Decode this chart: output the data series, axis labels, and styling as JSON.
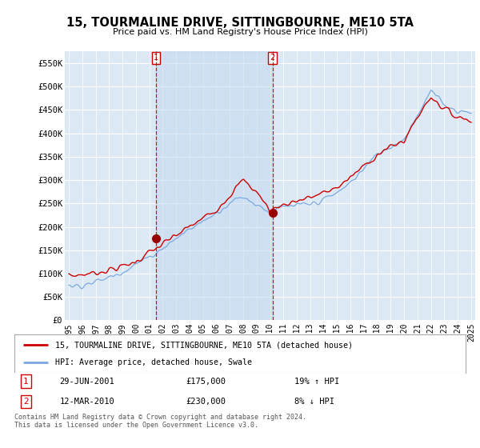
{
  "title": "15, TOURMALINE DRIVE, SITTINGBOURNE, ME10 5TA",
  "subtitle": "Price paid vs. HM Land Registry's House Price Index (HPI)",
  "ylim": [
    0,
    575000
  ],
  "yticks": [
    0,
    50000,
    100000,
    150000,
    200000,
    250000,
    300000,
    350000,
    400000,
    450000,
    500000,
    550000
  ],
  "ytick_labels": [
    "£0",
    "£50K",
    "£100K",
    "£150K",
    "£200K",
    "£250K",
    "£300K",
    "£350K",
    "£400K",
    "£450K",
    "£500K",
    "£550K"
  ],
  "background_color": "#ffffff",
  "plot_bg_color": "#dce9f5",
  "grid_color": "#c8d8e8",
  "shade_color": "#c5d8f0",
  "sale1_x": 6.5,
  "sale1_price": 175000,
  "sale1_date_str": "29-JUN-2001",
  "sale1_amount_str": "£175,000",
  "sale1_hpi_str": "19% ↑ HPI",
  "sale2_x": 15.2,
  "sale2_price": 230000,
  "sale2_date_str": "12-MAR-2010",
  "sale2_amount_str": "£230,000",
  "sale2_hpi_str": "8% ↓ HPI",
  "red_line_color": "#cc0000",
  "blue_line_color": "#7aaadd",
  "vline_color": "#cc0000",
  "dot_color": "#990000",
  "legend_label_red": "15, TOURMALINE DRIVE, SITTINGBOURNE, ME10 5TA (detached house)",
  "legend_label_blue": "HPI: Average price, detached house, Swale",
  "footer_text": "Contains HM Land Registry data © Crown copyright and database right 2024.\nThis data is licensed under the Open Government Licence v3.0.",
  "years": [
    "1995",
    "1996",
    "1997",
    "1998",
    "1999",
    "2000",
    "2001",
    "2002",
    "2003",
    "2004",
    "2005",
    "2006",
    "2007",
    "2008",
    "2009",
    "2010",
    "2011",
    "2012",
    "2013",
    "2014",
    "2015",
    "2016",
    "2017",
    "2018",
    "2019",
    "2020",
    "2021",
    "2022",
    "2023",
    "2024",
    "2025"
  ]
}
